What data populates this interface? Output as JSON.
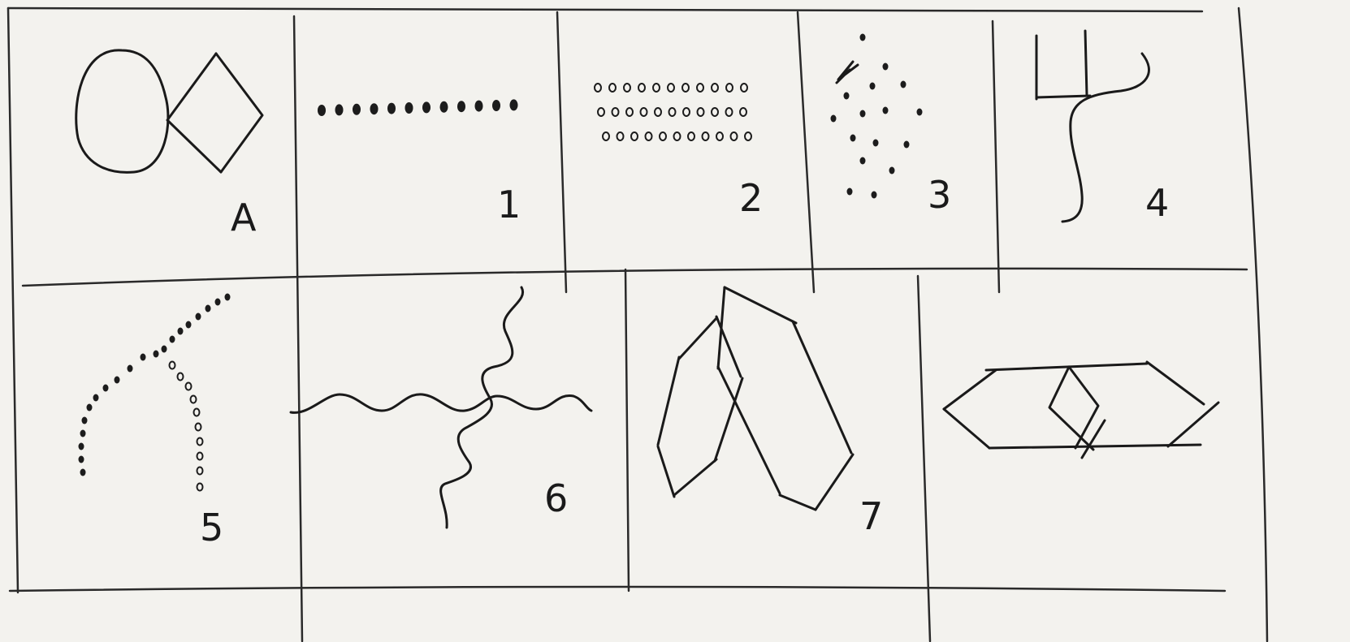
{
  "cells": [
    {
      "id": "A",
      "label": "A",
      "figure": "ellipse-and-rhombus"
    },
    {
      "id": "1",
      "label": "1",
      "figure": "row-of-filled-dots"
    },
    {
      "id": "2",
      "label": "2",
      "figure": "three-rows-of-open-dots"
    },
    {
      "id": "3",
      "label": "3",
      "figure": "diamond-of-dots"
    },
    {
      "id": "4",
      "label": "4",
      "figure": "cross-and-curve"
    },
    {
      "id": "5",
      "label": "5",
      "figure": "dotted-arcs"
    },
    {
      "id": "6",
      "label": "6",
      "figure": "crossing-wavy-lines"
    },
    {
      "id": "7",
      "label": "7",
      "figure": "overlapping-hexagons"
    },
    {
      "id": "8",
      "label": "",
      "figure": "hexagon-with-rhombus"
    }
  ]
}
